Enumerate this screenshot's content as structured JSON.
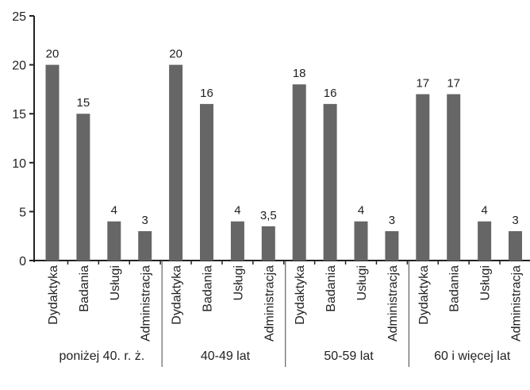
{
  "chart_data": {
    "type": "bar",
    "title": "",
    "xlabel": "",
    "ylabel": "",
    "ylim": [
      0,
      25
    ],
    "yticks": [
      0,
      5,
      10,
      15,
      20,
      25
    ],
    "grid": false,
    "bar_color": "#666666",
    "groups": [
      {
        "label": "poniżej 40. r. ż.",
        "categories": [
          "Dydaktyka",
          "Badania",
          "Usługi",
          "Administracja"
        ],
        "values": [
          20,
          15,
          4,
          3
        ],
        "value_labels": [
          "20",
          "15",
          "4",
          "3"
        ]
      },
      {
        "label": "40-49 lat",
        "categories": [
          "Dydaktyka",
          "Badania",
          "Usługi",
          "Administracja"
        ],
        "values": [
          20,
          16,
          4,
          3.5
        ],
        "value_labels": [
          "20",
          "16",
          "4",
          "3,5"
        ]
      },
      {
        "label": "50-59 lat",
        "categories": [
          "Dydaktyka",
          "Badania",
          "Usługi",
          "Administracja"
        ],
        "values": [
          18,
          16,
          4,
          3
        ],
        "value_labels": [
          "18",
          "16",
          "4",
          "3"
        ]
      },
      {
        "label": "60 i więcej lat",
        "categories": [
          "Dydaktyka",
          "Badania",
          "Usługi",
          "Administracja"
        ],
        "values": [
          17,
          17,
          4,
          3
        ],
        "value_labels": [
          "17",
          "17",
          "4",
          "3"
        ]
      }
    ]
  }
}
